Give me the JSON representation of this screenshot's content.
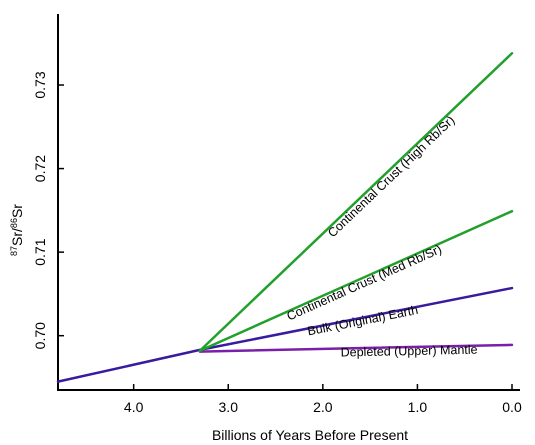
{
  "chart_data": {
    "type": "line",
    "title": "",
    "xlabel": "Billions of Years Before Present",
    "ylabel_parts": [
      "87",
      "Sr/",
      "86",
      "Sr"
    ],
    "x_reversed": true,
    "xlim": [
      4.8,
      0.0
    ],
    "ylim": [
      0.6935,
      0.7385
    ],
    "x_ticks": [
      {
        "value": 4.0,
        "label": "4.0"
      },
      {
        "value": 3.0,
        "label": "3.0"
      },
      {
        "value": 2.0,
        "label": "2.0"
      },
      {
        "value": 1.0,
        "label": "1.0"
      },
      {
        "value": 0.0,
        "label": "0.0"
      }
    ],
    "y_ticks": [
      {
        "value": 0.7,
        "label": "0.70"
      },
      {
        "value": 0.71,
        "label": "0.71"
      },
      {
        "value": 0.72,
        "label": "0.72"
      },
      {
        "value": 0.73,
        "label": "0.73"
      }
    ],
    "series": [
      {
        "name": "Bulk (Original) Earth",
        "color": "#3a1a9e",
        "x": [
          4.8,
          3.3,
          0.0
        ],
        "y": [
          0.6945,
          0.6983,
          0.7057
        ]
      },
      {
        "name": "Depleted (Upper) Mantle",
        "color": "#7a1fa8",
        "x": [
          3.3,
          0.0
        ],
        "y": [
          0.6981,
          0.6989
        ]
      },
      {
        "name": "Continental Crust (Med Rb/Sr)",
        "color": "#22a02c",
        "x": [
          3.3,
          0.0
        ],
        "y": [
          0.6982,
          0.7149
        ]
      },
      {
        "name": "Continental Crust (High Rb/Sr)",
        "color": "#22a02c",
        "x": [
          3.3,
          0.0
        ],
        "y": [
          0.6982,
          0.7338
        ]
      }
    ]
  }
}
